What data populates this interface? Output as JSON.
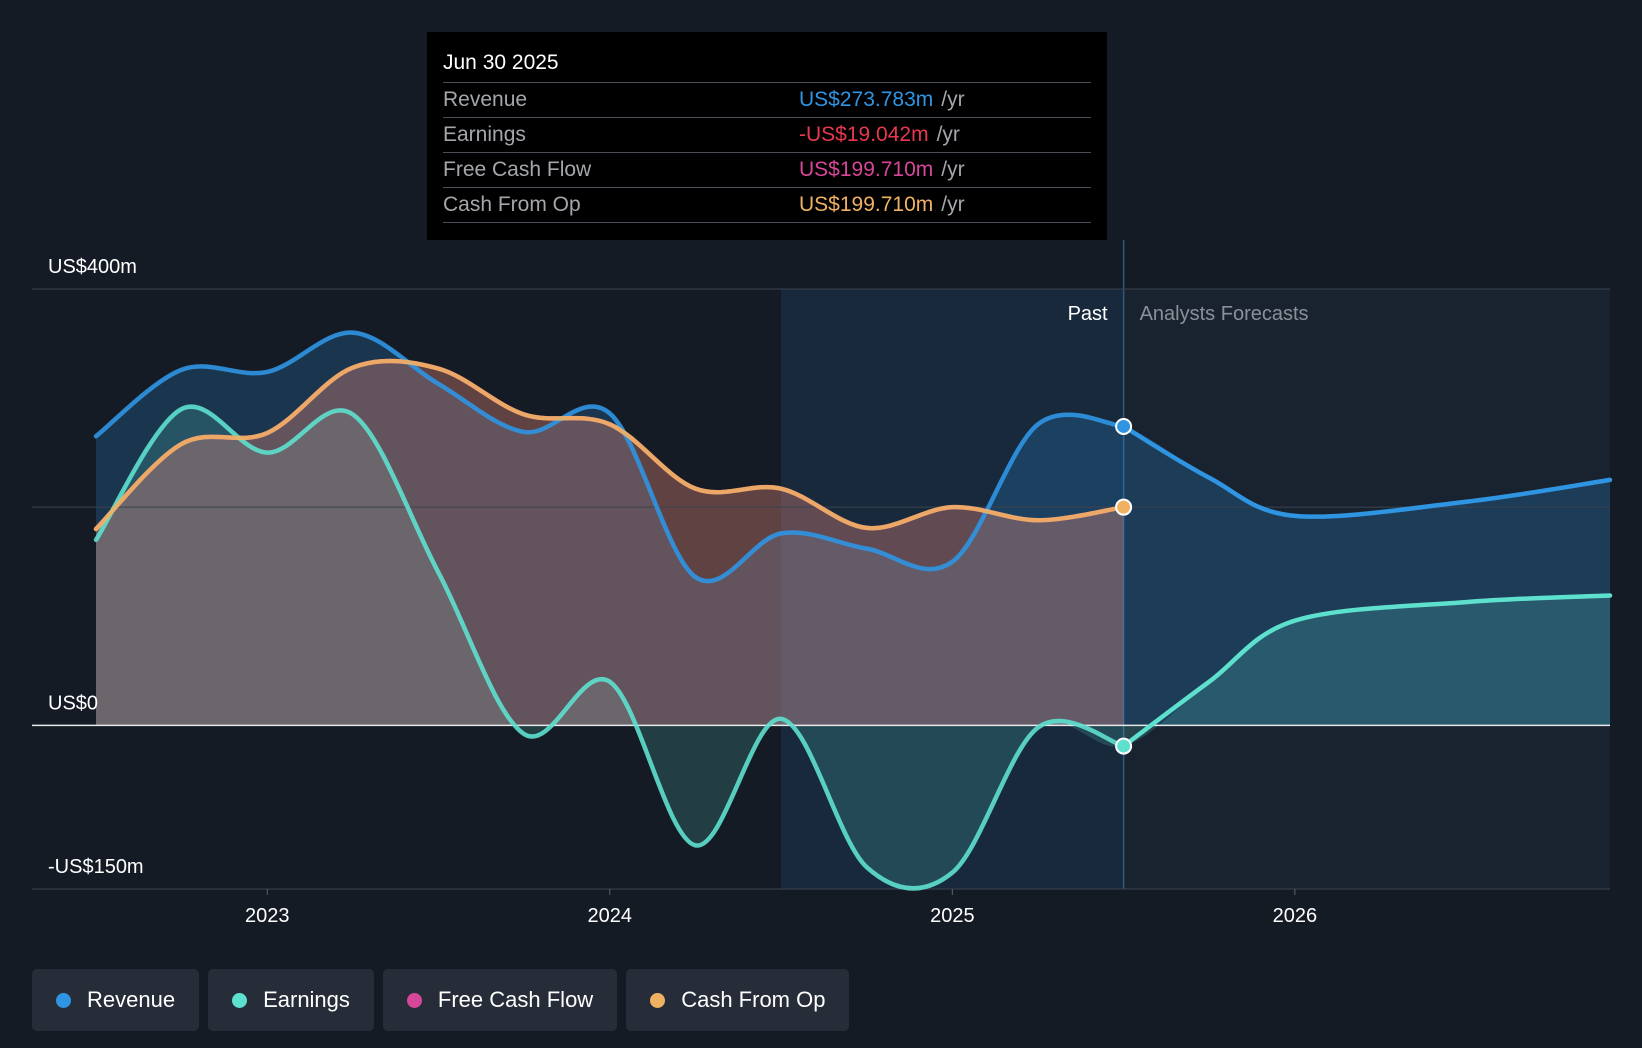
{
  "tooltip": {
    "date": "Jun 30 2025",
    "rows": [
      {
        "label": "Revenue",
        "value": "US$273.783m",
        "unit": "/yr",
        "color": "#2f95e3"
      },
      {
        "label": "Earnings",
        "value": "-US$19.042m",
        "unit": "/yr",
        "color": "#e8384f"
      },
      {
        "label": "Free Cash Flow",
        "value": "US$199.710m",
        "unit": "/yr",
        "color": "#d6479a"
      },
      {
        "label": "Cash From Op",
        "value": "US$199.710m",
        "unit": "/yr",
        "color": "#f0b262"
      }
    ]
  },
  "labels": {
    "past": "Past",
    "forecasts": "Analysts Forecasts"
  },
  "legend": [
    {
      "label": "Revenue",
      "color": "#2f95e3"
    },
    {
      "label": "Earnings",
      "color": "#5ee0cf"
    },
    {
      "label": "Free Cash Flow",
      "color": "#d6479a"
    },
    {
      "label": "Cash From Op",
      "color": "#f0b262"
    }
  ],
  "chart_data": {
    "type": "line",
    "y_tick_labels": [
      "US$400m",
      "US$0",
      "-US$150m"
    ],
    "x_tick_labels": [
      "2023",
      "2024",
      "2025",
      "2026"
    ],
    "ylim": [
      -150,
      400
    ],
    "x_range": [
      2022.5,
      2026.92
    ],
    "past_end": 2025.5,
    "highlight_start": 2024.5,
    "gridlines_at": [
      400,
      200,
      0
    ],
    "series": [
      {
        "name": "Revenue",
        "color": "#2f95e3",
        "points": [
          [
            2022.5,
            265
          ],
          [
            2022.75,
            326
          ],
          [
            2023.0,
            324
          ],
          [
            2023.25,
            360
          ],
          [
            2023.5,
            313
          ],
          [
            2023.75,
            269
          ],
          [
            2024.0,
            286
          ],
          [
            2024.25,
            136
          ],
          [
            2024.5,
            176
          ],
          [
            2024.75,
            162
          ],
          [
            2025.0,
            150
          ],
          [
            2025.25,
            276
          ],
          [
            2025.5,
            274
          ],
          [
            2025.75,
            227
          ],
          [
            2026.0,
            192
          ],
          [
            2026.5,
            205
          ],
          [
            2026.92,
            225
          ]
        ]
      },
      {
        "name": "Earnings",
        "color": "#5ee0cf",
        "points": [
          [
            2022.5,
            170
          ],
          [
            2022.75,
            290
          ],
          [
            2023.0,
            250
          ],
          [
            2023.25,
            285
          ],
          [
            2023.5,
            140
          ],
          [
            2023.75,
            -8
          ],
          [
            2024.0,
            40
          ],
          [
            2024.25,
            -110
          ],
          [
            2024.5,
            6
          ],
          [
            2024.75,
            -130
          ],
          [
            2025.0,
            -135
          ],
          [
            2025.25,
            -2
          ],
          [
            2025.5,
            -19
          ],
          [
            2025.75,
            40
          ],
          [
            2026.0,
            96
          ],
          [
            2026.5,
            113
          ],
          [
            2026.92,
            119
          ]
        ]
      },
      {
        "name": "Free Cash Flow",
        "color": "#d6479a",
        "points": [
          [
            2022.5,
            180
          ],
          [
            2022.75,
            258
          ],
          [
            2023.0,
            268
          ],
          [
            2023.25,
            328
          ],
          [
            2023.5,
            327
          ],
          [
            2023.75,
            285
          ],
          [
            2024.0,
            276
          ],
          [
            2024.25,
            217
          ],
          [
            2024.5,
            217
          ],
          [
            2024.75,
            181
          ],
          [
            2025.0,
            200
          ],
          [
            2025.25,
            188
          ],
          [
            2025.5,
            200
          ]
        ]
      },
      {
        "name": "Cash From Op",
        "color": "#f0b262",
        "points": [
          [
            2022.5,
            180
          ],
          [
            2022.75,
            258
          ],
          [
            2023.0,
            268
          ],
          [
            2023.25,
            328
          ],
          [
            2023.5,
            327
          ],
          [
            2023.75,
            285
          ],
          [
            2024.0,
            276
          ],
          [
            2024.25,
            217
          ],
          [
            2024.5,
            217
          ],
          [
            2024.75,
            181
          ],
          [
            2025.0,
            200
          ],
          [
            2025.25,
            188
          ],
          [
            2025.5,
            200
          ]
        ]
      }
    ]
  }
}
